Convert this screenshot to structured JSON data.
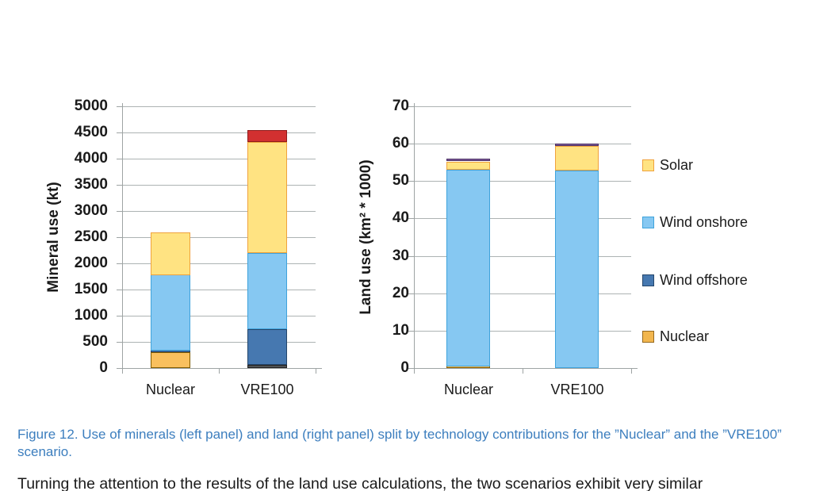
{
  "figure": {
    "caption": "Figure 12. Use of minerals (left panel) and land (right panel) split by technology contributions for the ”Nuclear” and the ”VRE100” scenario.",
    "caption_color": "#3C7EBE",
    "body_text": "Turning the attention to the results of the land use calculations, the two scenarios exhibit very similar"
  },
  "colors": {
    "grid": "#ADB3B3",
    "axis": "#9EA4A4",
    "text": "#1A1A1A"
  },
  "legend": {
    "items": [
      {
        "label": "Solar",
        "fill": "#FFE382",
        "border": "#F0A23C"
      },
      {
        "label": "Wind onshore",
        "fill": "#86C8F2",
        "border": "#3FA3DC"
      },
      {
        "label": "Wind offshore",
        "fill": "#4678B0",
        "border": "#24466B"
      },
      {
        "label": "Nuclear",
        "fill": "#F2B64E",
        "border": "#96691E"
      }
    ]
  },
  "chart_data": [
    {
      "type": "bar",
      "stacked": true,
      "title": "",
      "ylabel": "Mineral use (kt)",
      "xlabel": "",
      "categories": [
        "Nuclear",
        "VRE100"
      ],
      "ylim": [
        0,
        5000
      ],
      "ytick_step": 500,
      "grid": true,
      "legend_position": "right",
      "series": [
        {
          "name": "unlabeled dark",
          "color": "#4F5254",
          "border": "#222222",
          "values": [
            0,
            60
          ]
        },
        {
          "name": "Nuclear",
          "color": "#F9C05E",
          "border": "#805B00",
          "values": [
            300,
            0
          ]
        },
        {
          "name": "Wind offshore",
          "color": "#4678B0",
          "border": "#24466B",
          "values": [
            30,
            680
          ]
        },
        {
          "name": "Wind onshore",
          "color": "#86C8F2",
          "border": "#3FA3DC",
          "values": [
            1450,
            1460
          ]
        },
        {
          "name": "Solar",
          "color": "#FFE382",
          "border": "#F0A23C",
          "values": [
            820,
            2120
          ]
        },
        {
          "name": "unlabeled red",
          "color": "#D23030",
          "border": "#8E1B1B",
          "values": [
            0,
            230
          ]
        }
      ]
    },
    {
      "type": "bar",
      "stacked": true,
      "title": "",
      "ylabel": "Land use (km² * 1000)",
      "xlabel": "",
      "categories": [
        "Nuclear",
        "VRE100"
      ],
      "ylim": [
        0,
        70
      ],
      "ytick_step": 10,
      "grid": true,
      "legend_position": "right",
      "series": [
        {
          "name": "Nuclear",
          "color": "#F9C05E",
          "border": "#805B00",
          "values": [
            0.4,
            0
          ]
        },
        {
          "name": "Wind onshore",
          "color": "#86C8F2",
          "border": "#3FA3DC",
          "values": [
            52.7,
            52.9
          ]
        },
        {
          "name": "Solar",
          "color": "#FFE382",
          "border": "#F0A23C",
          "values": [
            2.2,
            6.6
          ]
        },
        {
          "name": "unlabeled purple",
          "color": "#7C5A9B",
          "border": "#4E3366",
          "values": [
            0.3,
            0.3
          ]
        }
      ]
    }
  ]
}
